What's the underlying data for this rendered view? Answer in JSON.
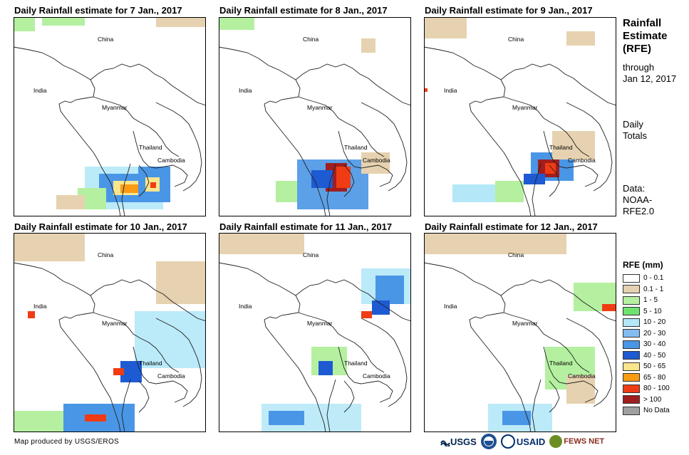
{
  "panels": [
    {
      "title": "Daily Rainfall estimate for 7 Jan., 2017"
    },
    {
      "title": "Daily Rainfall estimate for 8 Jan., 2017"
    },
    {
      "title": "Daily Rainfall estimate for 9 Jan., 2017"
    },
    {
      "title": "Daily Rainfall estimate for 10 Jan., 2017"
    },
    {
      "title": "Daily Rainfall estimate for 11 Jan., 2017"
    },
    {
      "title": "Daily Rainfall estimate for 12 Jan., 2017"
    }
  ],
  "labels": {
    "china": "China",
    "india": "India",
    "myanmar": "Myanmar",
    "thailand": "Thailand",
    "cambodia": "Cambodia"
  },
  "sidebar": {
    "title_line1": "Rainfall",
    "title_line2": "Estimate",
    "title_line3": "(RFE)",
    "through": "through",
    "date": "Jan 12, 2017",
    "daily": "Daily",
    "totals": "Totals",
    "data_label": "Data:",
    "data_line1": "NOAA-",
    "data_line2": "RFE2.0"
  },
  "legend": {
    "title": "RFE (mm)",
    "items": [
      {
        "label": "0 - 0.1",
        "color": "#ffffff"
      },
      {
        "label": "0.1 - 1",
        "color": "#e6d2b0"
      },
      {
        "label": "1 - 5",
        "color": "#b4f0a0"
      },
      {
        "label": "5 - 10",
        "color": "#6ee46e"
      },
      {
        "label": "10 - 20",
        "color": "#b4e8f8"
      },
      {
        "label": "20 - 30",
        "color": "#82bcf0"
      },
      {
        "label": "30 - 40",
        "color": "#4a96e6"
      },
      {
        "label": "40 - 50",
        "color": "#1e5ad2"
      },
      {
        "label": "50 - 65",
        "color": "#fae68c"
      },
      {
        "label": "65 - 80",
        "color": "#fa9b14"
      },
      {
        "label": "80 - 100",
        "color": "#f03c14"
      },
      {
        "label": "> 100",
        "color": "#a01e1e"
      },
      {
        "label": "No Data",
        "color": "#a0a0a0"
      }
    ]
  },
  "footer": "Map produced by USGS/EROS",
  "logos": {
    "usgs": "USGS",
    "usaid": "USAID",
    "fews": "FEWS NET"
  }
}
